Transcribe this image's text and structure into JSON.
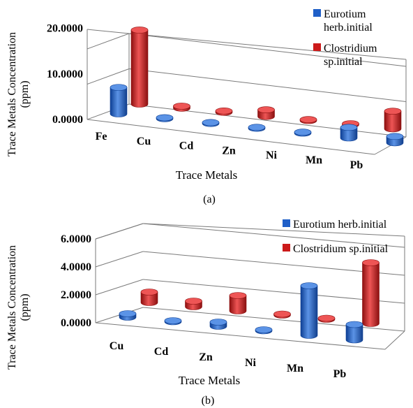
{
  "colors": {
    "blue": "#1f5fc8",
    "blue_dark": "#0d3f94",
    "blue_light": "#5b93e6",
    "red": "#cc1a1a",
    "red_dark": "#8c0f0f",
    "red_light": "#ee5555"
  },
  "chart_data": [
    {
      "type": "bar",
      "panel_label": "(a)",
      "xlabel": "Trace Metals",
      "ylabel": "Trace Metals Concentration (ppm)",
      "ylabel_line1": "Trace Metals Concentration",
      "ylabel_line2": "(ppm)",
      "ylim": [
        0,
        20
      ],
      "yticks": [
        "0.0000",
        "10.0000",
        "20.0000"
      ],
      "grid": true,
      "legend_placement": "top-right",
      "categories": [
        "Fe",
        "Cu",
        "Cd",
        "Zn",
        "Ni",
        "Mn",
        "Pb"
      ],
      "series": [
        {
          "name": "Eurotium herb.initial",
          "legend_line1": "Eurotium",
          "legend_line2": "herb.initial",
          "values": [
            7.5,
            0.15,
            0.05,
            0.3,
            0.05,
            3.0,
            1.8
          ]
        },
        {
          "name": "Clostridium sp.initial",
          "legend_line1": "Clostridium",
          "legend_line2": "sp.initial",
          "values": [
            21.0,
            0.6,
            0.4,
            1.9,
            0.1,
            0.2,
            5.0
          ]
        }
      ]
    },
    {
      "type": "bar",
      "panel_label": "(b)",
      "xlabel": "Trace Metals",
      "ylabel": "Trace Metals Concentration (ppm)",
      "ylabel_line1": "Trace Metals Concentration",
      "ylabel_line2": "(ppm)",
      "ylim": [
        0,
        6
      ],
      "yticks": [
        "0.0000",
        "2.0000",
        "4.0000",
        "6.0000"
      ],
      "grid": true,
      "legend_placement": "top-right",
      "categories": [
        "Cu",
        "Cd",
        "Zn",
        "Ni",
        "Mn",
        "Pb"
      ],
      "series": [
        {
          "name": "Eurotium herb.initial",
          "values": [
            0.25,
            0.03,
            0.3,
            0.03,
            3.55,
            1.1
          ]
        },
        {
          "name": "Clostridium sp.initial",
          "values": [
            0.75,
            0.4,
            1.1,
            0.03,
            0.05,
            4.35
          ]
        }
      ]
    }
  ]
}
